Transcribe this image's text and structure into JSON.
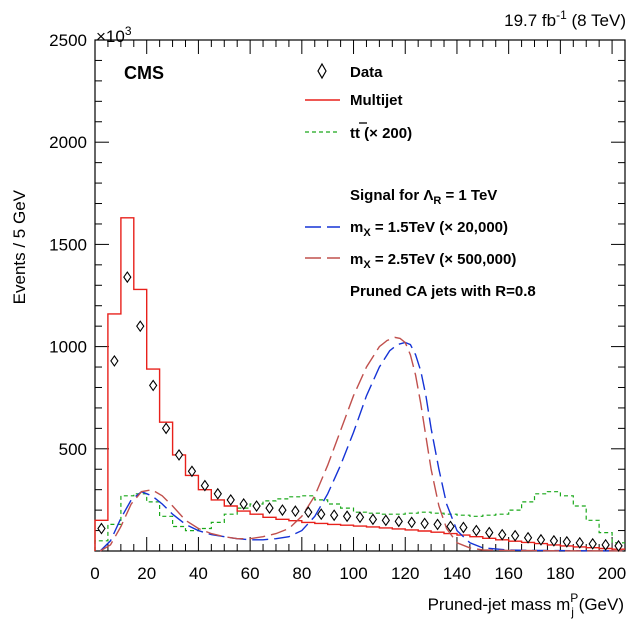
{
  "header": {
    "lumi": "19.7 fb",
    "lumi_sup": "-1",
    "energy": " (8 TeV)",
    "experiment": "CMS",
    "scale_base": "×10",
    "scale_exp": "3"
  },
  "legend": {
    "data": "Data",
    "multijet": "Multijet",
    "ttbar_main": "tt",
    "ttbar_scale": " (× 200)",
    "signal_title": "Signal for Λ",
    "signal_title_sub": "R",
    "signal_title_rest": " = 1 TeV",
    "sig1_main": "m",
    "sig1_sub": "X",
    "sig1_rest": " = 1.5TeV (× 20,000)",
    "sig2_main": "m",
    "sig2_sub": "X",
    "sig2_rest": " = 2.5TeV (× 500,000)",
    "jets": "Pruned CA jets with R=0.8"
  },
  "colors": {
    "multijet": "#e8211b",
    "ttbar": "#1aa81a",
    "sig1": "#1533d6",
    "sig2": "#c0504d",
    "data": "#000000"
  },
  "chart_data": {
    "type": "line",
    "xlabel_main": "Pruned-jet mass m",
    "xlabel_sub": "j",
    "xlabel_sup": "P",
    "xlabel_unit": " (GeV)",
    "ylabel": "Events / 5 GeV",
    "xlim": [
      0,
      205
    ],
    "ylim": [
      0,
      2500
    ],
    "y_multiplier": "×10^3",
    "x_ticks": [
      "0",
      "20",
      "40",
      "60",
      "80",
      "100",
      "120",
      "140",
      "160",
      "180",
      "200"
    ],
    "y_ticks": [
      "500",
      "1000",
      "1500",
      "2000",
      "2500"
    ],
    "grid": false,
    "legend_position": "top-right",
    "series": [
      {
        "name": "Data",
        "style": "markers",
        "x": [
          2.5,
          7.5,
          12.5,
          17.5,
          22.5,
          27.5,
          32.5,
          37.5,
          42.5,
          47.5,
          52.5,
          57.5,
          62.5,
          67.5,
          72.5,
          77.5,
          82.5,
          87.5,
          92.5,
          97.5,
          102.5,
          107.5,
          112.5,
          117.5,
          122.5,
          127.5,
          132.5,
          137.5,
          142.5,
          147.5,
          152.5,
          157.5,
          162.5,
          167.5,
          172.5,
          177.5,
          182.5,
          187.5,
          192.5,
          197.5,
          202.5
        ],
        "y": [
          110,
          930,
          1340,
          1100,
          810,
          600,
          470,
          390,
          320,
          280,
          250,
          230,
          220,
          210,
          200,
          195,
          190,
          180,
          175,
          170,
          165,
          155,
          150,
          145,
          140,
          135,
          130,
          120,
          115,
          100,
          90,
          80,
          75,
          65,
          55,
          50,
          45,
          40,
          35,
          30,
          25
        ]
      },
      {
        "name": "Multijet",
        "style": "step",
        "edges": [
          0,
          5,
          10,
          15,
          20,
          25,
          30,
          35,
          40,
          45,
          50,
          55,
          60,
          65,
          70,
          75,
          80,
          85,
          90,
          95,
          100,
          105,
          110,
          115,
          120,
          125,
          130,
          135,
          140,
          145,
          150,
          155,
          160,
          165,
          170,
          175,
          180,
          185,
          190,
          195,
          200,
          205
        ],
        "values": [
          150,
          1160,
          1630,
          1280,
          890,
          630,
          470,
          370,
          300,
          250,
          220,
          195,
          180,
          165,
          155,
          148,
          140,
          135,
          130,
          126,
          122,
          118,
          113,
          108,
          103,
          98,
          92,
          85,
          78,
          70,
          62,
          55,
          48,
          42,
          36,
          30,
          25,
          20,
          16,
          12,
          9
        ]
      },
      {
        "name": "tt (× 200)",
        "style": "step-dashed",
        "edges": [
          0,
          5,
          10,
          15,
          20,
          25,
          30,
          35,
          40,
          45,
          50,
          55,
          60,
          65,
          70,
          75,
          80,
          85,
          90,
          95,
          100,
          105,
          110,
          115,
          120,
          125,
          130,
          135,
          140,
          145,
          150,
          155,
          160,
          165,
          170,
          175,
          180,
          185,
          190,
          195,
          200,
          205
        ],
        "values": [
          50,
          130,
          270,
          280,
          240,
          170,
          120,
          100,
          110,
          140,
          180,
          210,
          230,
          245,
          255,
          265,
          270,
          250,
          230,
          210,
          190,
          185,
          180,
          180,
          185,
          190,
          185,
          180,
          175,
          170,
          175,
          180,
          200,
          240,
          280,
          290,
          270,
          220,
          150,
          90,
          40
        ]
      },
      {
        "name": "m_X = 1.5TeV (× 20,000)",
        "style": "dash-long",
        "x": [
          2,
          6,
          10,
          14,
          18,
          22,
          26,
          30,
          35,
          40,
          45,
          50,
          55,
          60,
          65,
          70,
          75,
          80,
          85,
          90,
          95,
          100,
          105,
          110,
          114,
          117,
          120,
          122,
          124,
          126,
          128,
          130,
          133,
          136,
          140,
          145,
          150,
          160,
          170,
          180,
          190,
          200,
          204
        ],
        "y": [
          0,
          50,
          160,
          250,
          290,
          270,
          230,
          180,
          130,
          100,
          80,
          70,
          60,
          55,
          55,
          60,
          70,
          100,
          170,
          280,
          420,
          580,
          760,
          900,
          980,
          1010,
          1020,
          1010,
          960,
          880,
          760,
          600,
          400,
          230,
          100,
          40,
          15,
          5,
          3,
          2,
          1,
          1,
          1
        ]
      },
      {
        "name": "m_X = 2.5TeV (× 500,000)",
        "style": "dash-long",
        "x": [
          2,
          6,
          10,
          14,
          18,
          22,
          26,
          30,
          35,
          40,
          45,
          50,
          55,
          60,
          65,
          70,
          75,
          80,
          85,
          90,
          95,
          100,
          105,
          110,
          113,
          116,
          118,
          120,
          122,
          124,
          126,
          128,
          130,
          133,
          136,
          140,
          145,
          150,
          160,
          170,
          180,
          190,
          200,
          204
        ],
        "y": [
          0,
          30,
          120,
          230,
          290,
          300,
          270,
          220,
          150,
          110,
          85,
          70,
          60,
          60,
          70,
          85,
          110,
          170,
          270,
          420,
          590,
          760,
          900,
          1000,
          1030,
          1045,
          1040,
          1020,
          960,
          860,
          720,
          560,
          400,
          220,
          110,
          40,
          15,
          5,
          3,
          2,
          1,
          1,
          1,
          1
        ]
      }
    ]
  }
}
